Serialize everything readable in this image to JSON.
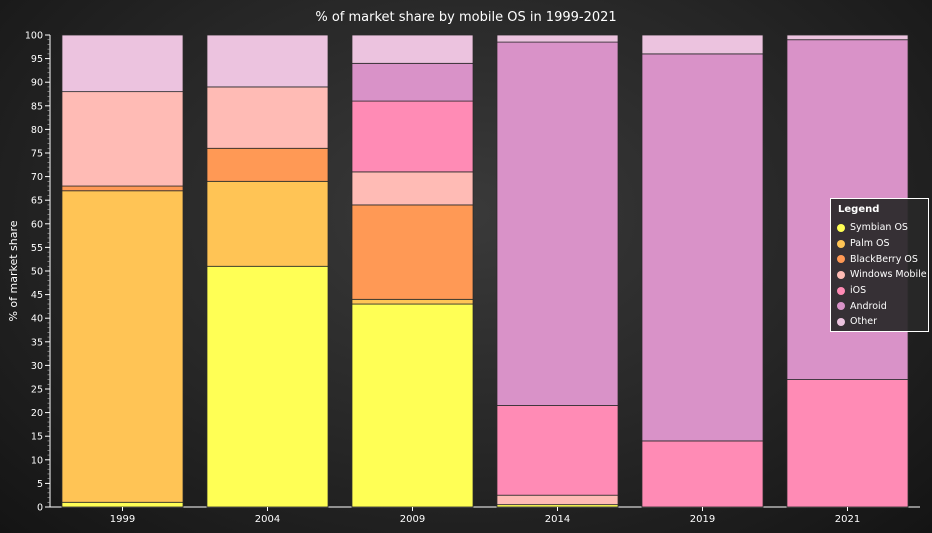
{
  "chart_data": {
    "type": "bar",
    "stacked": true,
    "title": "% of market share by mobile OS in 1999-2021",
    "ylabel": "% of market share",
    "xlabel": "",
    "ylim": [
      0,
      100
    ],
    "yticks_major": [
      0,
      5,
      10,
      15,
      20,
      25,
      30,
      35,
      40,
      45,
      50,
      55,
      60,
      65,
      70,
      75,
      80,
      85,
      90,
      95,
      100
    ],
    "categories": [
      "1999",
      "2004",
      "2009",
      "2014",
      "2019",
      "2021"
    ],
    "series": [
      {
        "name": "Symbian OS",
        "color": "#ffff55",
        "values": [
          1,
          51,
          43,
          0.5,
          0,
          0
        ]
      },
      {
        "name": "Palm OS",
        "color": "#ffc455",
        "values": [
          66,
          18,
          1,
          0,
          0,
          0
        ]
      },
      {
        "name": "BlackBerry OS",
        "color": "#ff9955",
        "values": [
          1,
          7,
          20,
          0,
          0,
          0
        ]
      },
      {
        "name": "Windows Mobile",
        "color": "#ffbbb5",
        "values": [
          20,
          13,
          7,
          2,
          0,
          0
        ]
      },
      {
        "name": "iOS",
        "color": "#ff8bb5",
        "values": [
          0,
          0,
          15,
          19,
          14,
          27
        ]
      },
      {
        "name": "Android",
        "color": "#d992c8",
        "values": [
          0,
          0,
          8,
          77,
          82,
          72
        ]
      },
      {
        "name": "Other",
        "color": "#ecc3df",
        "values": [
          12,
          11,
          6,
          1.5,
          4,
          1
        ]
      }
    ],
    "legend": {
      "title": "Legend",
      "position": "right"
    },
    "grid": false
  }
}
